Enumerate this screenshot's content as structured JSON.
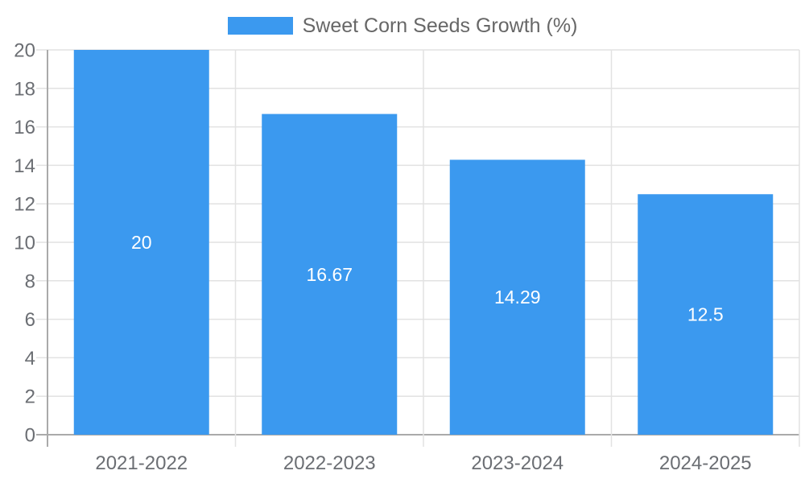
{
  "legend": {
    "label": "Sweet Corn Seeds Growth (%)"
  },
  "chart_data": {
    "type": "bar",
    "title": "Sweet Corn Seeds Growth (%)",
    "categories": [
      "2021-2022",
      "2022-2023",
      "2023-2024",
      "2024-2025"
    ],
    "values": [
      20,
      16.67,
      14.29,
      12.5
    ],
    "value_labels": [
      "20",
      "16.67",
      "14.29",
      "12.5"
    ],
    "series": [
      {
        "name": "Sweet Corn Seeds Growth (%)",
        "values": [
          20,
          16.67,
          14.29,
          12.5
        ]
      }
    ],
    "xlabel": "",
    "ylabel": "",
    "ylim": [
      0,
      20
    ],
    "ytick_step": 2,
    "ytick_labels": [
      "0",
      "2",
      "4",
      "6",
      "8",
      "10",
      "12",
      "14",
      "16",
      "18",
      "20"
    ],
    "grid": true,
    "legend_position": "top-center",
    "colors": {
      "bar": "#3b99ef",
      "grid": "#e2e2e2",
      "axis": "#aaaaaa",
      "tick_text": "#6b6e73",
      "value_text": "#ffffff"
    }
  }
}
